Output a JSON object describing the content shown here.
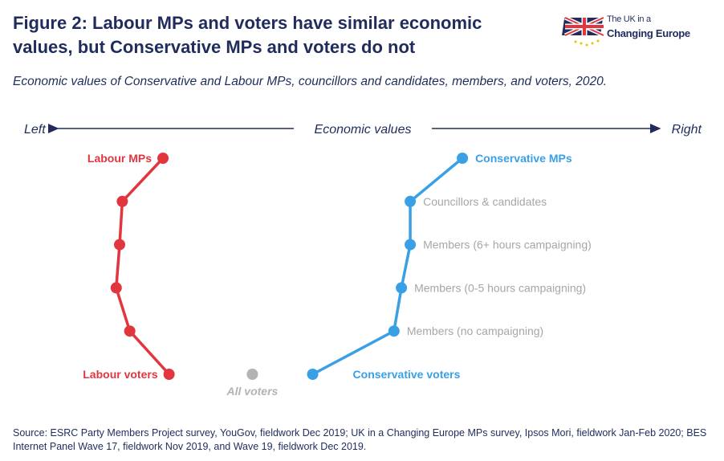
{
  "header": {
    "title": "Figure 2: Labour MPs and voters have similar economic values, but Conservative MPs and voters do not",
    "subtitle": "Economic values of Conservative and Labour MPs, councillors and candidates, members, and voters, 2020."
  },
  "logo": {
    "line1": "The UK in a",
    "line2": "Changing Europe"
  },
  "colors": {
    "labour": "#e2363f",
    "conservative": "#3aa0e6",
    "all_voters": "#b3b3b3",
    "grey_label": "#a6a6a6",
    "navy": "#1f2c5c"
  },
  "chart_data": {
    "type": "line",
    "title": "Economic values",
    "axis_left": "Left",
    "axis_right": "Right",
    "xlim": [
      0,
      100
    ],
    "levels": [
      "MPs",
      "Councillors & candidates",
      "Members (6+ hours campaigning)",
      "Members (0-5 hours campaigning)",
      "Members (no campaigning)",
      "Voters"
    ],
    "series": [
      {
        "name": "Labour",
        "values": [
          20.5,
          14.5,
          14.1,
          13.6,
          15.6,
          21.4
        ],
        "labels": [
          "Labour MPs",
          "",
          "",
          "",
          "",
          "Labour voters"
        ]
      },
      {
        "name": "Conservative",
        "values": [
          64.7,
          57.0,
          57.0,
          55.7,
          54.6,
          42.6
        ],
        "labels": [
          "Conservative MPs",
          "Councillors & candidates",
          "Members (6+ hours campaigning)",
          "Members (0-5 hours campaigning)",
          "Members (no campaigning)",
          "Conservative voters"
        ]
      }
    ],
    "all_voters": {
      "label": "All voters",
      "value": 33.7
    }
  },
  "source": "Source: ESRC Party Members Project survey, YouGov, fieldwork Dec 2019; UK in a Changing Europe MPs survey, Ipsos Mori, fieldwork Jan-Feb 2020; BES Internet Panel Wave 17, fieldwork Nov 2019, and Wave 19, fieldwork Dec 2019."
}
